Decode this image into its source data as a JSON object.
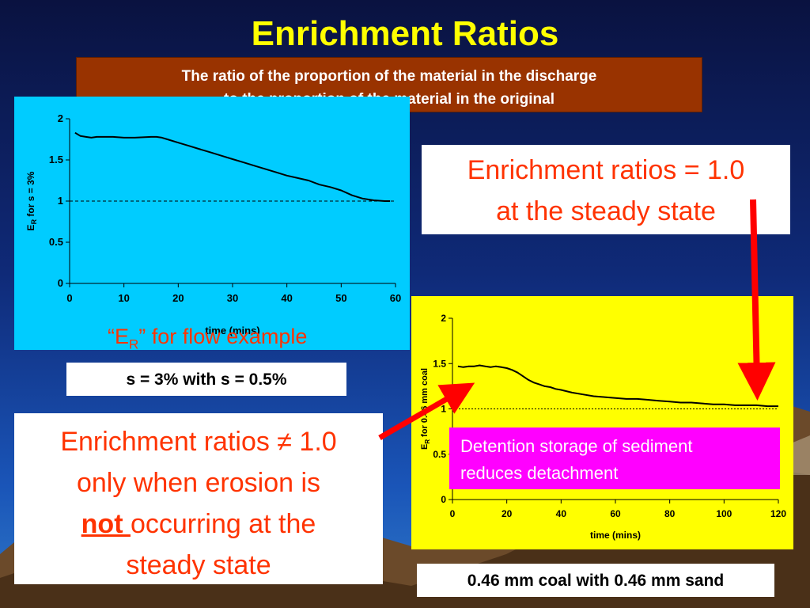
{
  "title": "Enrichment Ratios",
  "definition": {
    "line1": "The ratio of the proportion of the material in the discharge",
    "line2": "to the proportion of the material in the original"
  },
  "colors": {
    "title": "#ffff00",
    "definition_bg": "#993300",
    "chart1_bg": "#00ccff",
    "chart2_bg": "#ffff00",
    "callout_text": "#ff3300",
    "detention_bg": "#ff00ff",
    "arrow": "#ff0000"
  },
  "chart_data": [
    {
      "type": "line",
      "ylabel_main": "E",
      "ylabel_sub": "R",
      "ylabel_rest": " for s = 3%",
      "xlabel": "time (mins)",
      "xlim": [
        0,
        60
      ],
      "ylim": [
        0,
        2
      ],
      "xticks": [
        0,
        10,
        20,
        30,
        40,
        50,
        60
      ],
      "yticks": [
        0,
        0.5,
        1,
        1.5,
        2
      ],
      "ytick_labels": [
        "0",
        "0.5",
        "1",
        "1.5",
        "2"
      ],
      "reference_line": 1.0,
      "annotation_main": "“E",
      "annotation_sub": "R",
      "annotation_rest": "” for flow example",
      "x": [
        1,
        2,
        3,
        4,
        5,
        6,
        8,
        10,
        12,
        15,
        16,
        17,
        18,
        20,
        22,
        24,
        26,
        28,
        30,
        32,
        34,
        36,
        38,
        40,
        42,
        44,
        46,
        48,
        50,
        52,
        54,
        56,
        58,
        59
      ],
      "y": [
        1.83,
        1.79,
        1.78,
        1.77,
        1.78,
        1.78,
        1.78,
        1.77,
        1.77,
        1.78,
        1.78,
        1.77,
        1.75,
        1.71,
        1.67,
        1.63,
        1.59,
        1.55,
        1.51,
        1.47,
        1.43,
        1.39,
        1.35,
        1.31,
        1.28,
        1.25,
        1.2,
        1.17,
        1.13,
        1.07,
        1.03,
        1.01,
        1.0,
        1.0
      ]
    },
    {
      "type": "line",
      "ylabel_main": "E",
      "ylabel_sub": "R",
      "ylabel_rest": " for 0.46 mm coal",
      "xlabel": "time (mins)",
      "xlim": [
        0,
        120
      ],
      "ylim": [
        0,
        2
      ],
      "xticks": [
        0,
        20,
        40,
        60,
        80,
        100,
        120
      ],
      "yticks": [
        0,
        0.5,
        1,
        1.5,
        2
      ],
      "ytick_labels": [
        "0",
        "0.5",
        "1",
        "1.5",
        "2"
      ],
      "reference_line": 1.0,
      "x": [
        2,
        4,
        6,
        8,
        10,
        12,
        14,
        16,
        18,
        20,
        22,
        24,
        26,
        28,
        30,
        32,
        34,
        36,
        38,
        40,
        44,
        48,
        52,
        56,
        60,
        64,
        68,
        72,
        76,
        80,
        84,
        88,
        92,
        96,
        100,
        104,
        108,
        112,
        116,
        120
      ],
      "y": [
        1.47,
        1.46,
        1.47,
        1.47,
        1.48,
        1.47,
        1.46,
        1.47,
        1.46,
        1.45,
        1.43,
        1.4,
        1.36,
        1.32,
        1.29,
        1.27,
        1.25,
        1.24,
        1.22,
        1.21,
        1.18,
        1.16,
        1.14,
        1.13,
        1.12,
        1.11,
        1.11,
        1.1,
        1.09,
        1.08,
        1.07,
        1.07,
        1.06,
        1.05,
        1.05,
        1.04,
        1.04,
        1.04,
        1.03,
        1.03
      ]
    }
  ],
  "captions": {
    "chart1": "s = 3% with s = 0.5%",
    "chart2": "0.46 mm coal with 0.46 mm sand"
  },
  "callout_steady": {
    "line1": "Enrichment ratios = 1.0",
    "line2": "at the steady state"
  },
  "callout_not": {
    "line1": "Enrichment ratios ≠ 1.0",
    "line2": "only when erosion is",
    "not_word": "not ",
    "line3_rest": "occurring at the",
    "line4": "steady state"
  },
  "detention": {
    "line1": "Detention storage of sediment",
    "line2": "reduces detachment"
  }
}
